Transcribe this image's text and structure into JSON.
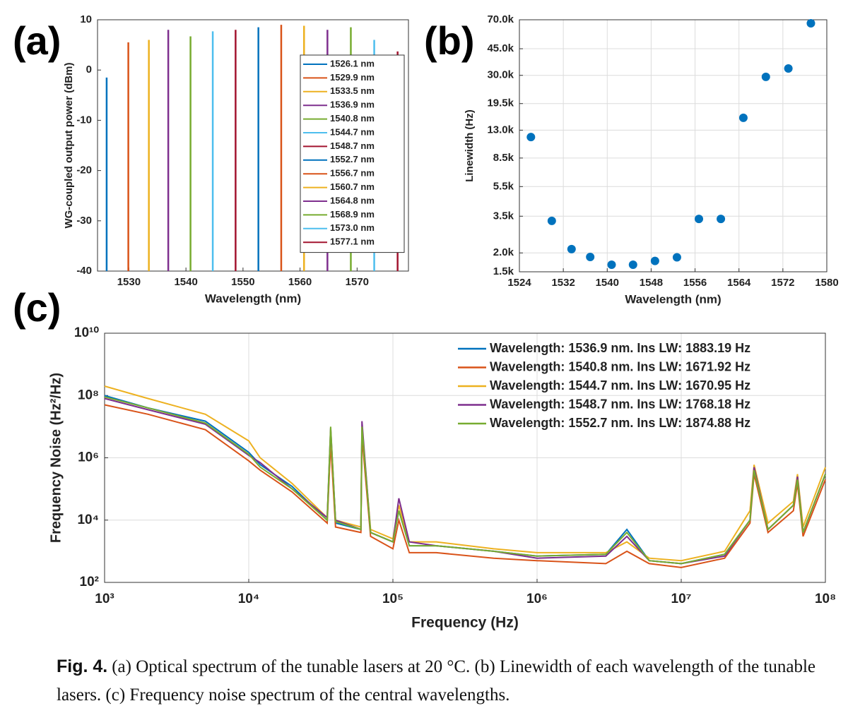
{
  "chart_data": [
    {
      "type": "stem",
      "label": "(a)",
      "x_label": "Wavelength (nm)",
      "y_label": "WG-coupled output power (dBm)",
      "xlim": [
        1524.5,
        1579
      ],
      "xticks": [
        1530,
        1540,
        1550,
        1560,
        1570
      ],
      "ylim": [
        -40,
        10
      ],
      "yticks": [
        -40,
        -30,
        -20,
        -10,
        0,
        10
      ],
      "grid": false,
      "legend": "right",
      "series": [
        {
          "name": "1526.1 nm",
          "color": "#0072bd",
          "x": [
            1526.1
          ],
          "values": [
            -1.5
          ]
        },
        {
          "name": "1529.9 nm",
          "color": "#d95319",
          "x": [
            1529.9
          ],
          "values": [
            5.5
          ]
        },
        {
          "name": "1533.5 nm",
          "color": "#edb120",
          "x": [
            1533.5
          ],
          "values": [
            6
          ]
        },
        {
          "name": "1536.9 nm",
          "color": "#7e2f8e",
          "x": [
            1536.9
          ],
          "values": [
            8
          ]
        },
        {
          "name": "1540.8 nm",
          "color": "#77ac30",
          "x": [
            1540.8
          ],
          "values": [
            6.7
          ]
        },
        {
          "name": "1544.7 nm",
          "color": "#4dbeee",
          "x": [
            1544.7
          ],
          "values": [
            7.7
          ]
        },
        {
          "name": "1548.7 nm",
          "color": "#a2142f",
          "x": [
            1548.7
          ],
          "values": [
            8
          ]
        },
        {
          "name": "1552.7 nm",
          "color": "#0072bd",
          "x": [
            1552.7
          ],
          "values": [
            8.5
          ]
        },
        {
          "name": "1556.7 nm",
          "color": "#d95319",
          "x": [
            1556.7
          ],
          "values": [
            9
          ]
        },
        {
          "name": "1560.7 nm",
          "color": "#edb120",
          "x": [
            1560.7
          ],
          "values": [
            8.8
          ]
        },
        {
          "name": "1564.8 nm",
          "color": "#7e2f8e",
          "x": [
            1564.8
          ],
          "values": [
            8
          ]
        },
        {
          "name": "1568.9 nm",
          "color": "#77ac30",
          "x": [
            1568.9
          ],
          "values": [
            8.5
          ]
        },
        {
          "name": "1573.0 nm",
          "color": "#4dbeee",
          "x": [
            1573.0
          ],
          "values": [
            6
          ]
        },
        {
          "name": "1577.1 nm",
          "color": "#a2142f",
          "x": [
            1577.1
          ],
          "values": [
            3.7
          ]
        }
      ]
    },
    {
      "type": "scatter",
      "label": "(b)",
      "x_label": "Wavelength (nm)",
      "y_label": "Linewidth (Hz)",
      "xlim": [
        1524,
        1580
      ],
      "xticks": [
        1524,
        1532,
        1540,
        1548,
        1556,
        1564,
        1572,
        1580
      ],
      "ylim": [
        1500,
        70000
      ],
      "log_y": true,
      "grid": true,
      "yticks": [
        {
          "value": 1500,
          "label": "1.5k"
        },
        {
          "value": 2000,
          "label": "2.0k"
        },
        {
          "value": 3500,
          "label": "3.5k"
        },
        {
          "value": 5500,
          "label": "5.5k"
        },
        {
          "value": 8500,
          "label": "8.5k"
        },
        {
          "value": 13000,
          "label": "13.0k"
        },
        {
          "value": 19500,
          "label": "19.5k"
        },
        {
          "value": 30000,
          "label": "30.0k"
        },
        {
          "value": 45000,
          "label": "45.0k"
        },
        {
          "value": 70000,
          "label": "70.0k"
        }
      ],
      "series": [
        {
          "color": "#0072bd",
          "x": [
            1526.1,
            1529.9,
            1533.5,
            1536.9,
            1540.8,
            1544.7,
            1548.7,
            1552.7,
            1556.7,
            1560.7,
            1564.8,
            1568.9,
            1573.0,
            1577.1
          ],
          "values": [
            11700,
            3260,
            2120,
            1880,
            1670,
            1670,
            1770,
            1870,
            3360,
            3360,
            15700,
            29300,
            33300,
            66300
          ]
        }
      ]
    },
    {
      "type": "line",
      "label": "(c)",
      "x_label": "Frequency (Hz)",
      "y_label": "Frequency Noise (Hz²/Hz)",
      "log_x": true,
      "log_y": true,
      "grid": true,
      "legend": "top-right",
      "xlim": [
        1000,
        100000000
      ],
      "xticks": [
        {
          "value": 1000,
          "label": "10³"
        },
        {
          "value": 10000,
          "label": "10⁴"
        },
        {
          "value": 100000,
          "label": "10⁵"
        },
        {
          "value": 1000000,
          "label": "10⁶"
        },
        {
          "value": 10000000,
          "label": "10⁷"
        },
        {
          "value": 100000000,
          "label": "10⁸"
        }
      ],
      "ylim": [
        100,
        10000000000
      ],
      "yticks": [
        {
          "value": 100,
          "label": "10²"
        },
        {
          "value": 10000,
          "label": "10⁴"
        },
        {
          "value": 1000000,
          "label": "10⁶"
        },
        {
          "value": 100000000,
          "label": "10⁸"
        },
        {
          "value": 10000000000,
          "label": "10¹⁰"
        }
      ],
      "x": [
        1000,
        2000,
        5000,
        10000,
        12000,
        20000,
        35000,
        37000,
        40000,
        60000,
        61000,
        70000,
        100000,
        110000,
        130000,
        200000,
        500000,
        1000000,
        3000000,
        4200000,
        6000000,
        10000000,
        20000000,
        30000000,
        32000000,
        40000000,
        60000000,
        64000000,
        70000000,
        100000000
      ],
      "series": [
        {
          "name": "Wavelength: 1536.9 nm. Ins LW: 1883.19 Hz",
          "color": "#0072bd",
          "values": [
            100000000.0,
            40000000.0,
            15000000.0,
            1500000.0,
            600000.0,
            120000.0,
            10000.0,
            5000000.0,
            8000.0,
            5000.0,
            8000000.0,
            4000.0,
            2000.0,
            20000.0,
            1500.0,
            1500.0,
            1000.0,
            700.0,
            800.0,
            5000.0,
            500.0,
            400.0,
            800.0,
            10000.0,
            400000.0,
            5000.0,
            30000.0,
            200000.0,
            4000.0,
            300000.0
          ]
        },
        {
          "name": "Wavelength: 1540.8 nm. Ins LW: 1671.92 Hz",
          "color": "#d95319",
          "values": [
            50000000.0,
            25000000.0,
            8000000.0,
            800000.0,
            400000.0,
            80000.0,
            8000.0,
            3000000.0,
            6000.0,
            4000.0,
            5000000.0,
            3000.0,
            1200.0,
            10000.0,
            900.0,
            900.0,
            600.0,
            500.0,
            400.0,
            1000.0,
            400.0,
            300.0,
            600.0,
            8000.0,
            300000.0,
            4000.0,
            20000.0,
            150000.0,
            3000.0,
            200000.0
          ]
        },
        {
          "name": "Wavelength: 1544.7 nm. Ins LW: 1670.95 Hz",
          "color": "#edb120",
          "values": [
            200000000.0,
            80000000.0,
            25000000.0,
            3500000.0,
            1000000.0,
            150000.0,
            12000.0,
            6000000.0,
            10000.0,
            6000.0,
            10000000.0,
            5000.0,
            2500.0,
            30000.0,
            2000.0,
            2000.0,
            1200.0,
            900.0,
            900.0,
            2000.0,
            600.0,
            500.0,
            1000.0,
            20000.0,
            600000.0,
            8000.0,
            40000.0,
            300000.0,
            6000.0,
            500000.0
          ]
        },
        {
          "name": "Wavelength: 1548.7 nm. Ins LW: 1768.18 Hz",
          "color": "#7e2f8e",
          "values": [
            80000000.0,
            35000000.0,
            12000000.0,
            1200000.0,
            700000.0,
            100000.0,
            12000.0,
            9000000.0,
            10000.0,
            5000.0,
            15000000.0,
            4000.0,
            2000.0,
            50000.0,
            2000.0,
            1500.0,
            1000.0,
            600.0,
            700.0,
            3000.0,
            500.0,
            400.0,
            700.0,
            10000.0,
            500000.0,
            5000.0,
            30000.0,
            250000.0,
            4000.0,
            300000.0
          ]
        },
        {
          "name": "Wavelength: 1552.7 nm. Ins LW: 1874.88 Hz",
          "color": "#77ac30",
          "values": [
            90000000.0,
            40000000.0,
            13000000.0,
            1300000.0,
            500000.0,
            100000.0,
            10000.0,
            10000000.0,
            9000.0,
            5000.0,
            10000000.0,
            4000.0,
            2000.0,
            20000.0,
            1500.0,
            1500.0,
            1000.0,
            700.0,
            800.0,
            4000.0,
            500.0,
            400.0,
            800.0,
            10000.0,
            400000.0,
            5000.0,
            30000.0,
            200000.0,
            4000.0,
            300000.0
          ]
        }
      ]
    }
  ],
  "caption": {
    "label": "Fig. 4.",
    "text": "(a) Optical spectrum of the tunable lasers at 20 °C. (b) Linewidth of each wavelength of the tunable lasers. (c) Frequency noise spectrum of the central wavelengths."
  }
}
